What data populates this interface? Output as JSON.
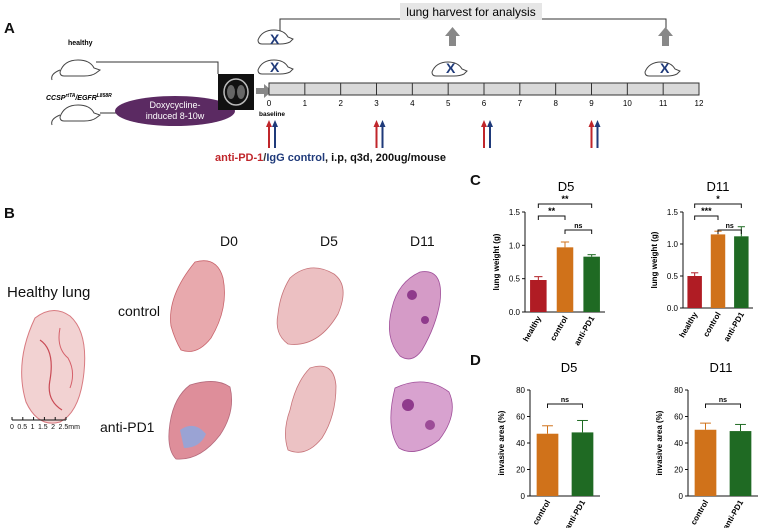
{
  "panel_letters": {
    "a": "A",
    "b": "B",
    "c": "C",
    "d": "D"
  },
  "panel_a": {
    "harvest_label": "lung harvest for analysis",
    "group_healthy": "healthy",
    "group_model": "CCSP",
    "group_model_sup": "rtTA",
    "group_model_mid": "/EGFR",
    "group_model_sup2": "L858R",
    "dox_line1": "Doxycycline-",
    "dox_line2": "induced 8-10w",
    "baseline": "baseline",
    "timeline_ticks": [
      "0",
      "1",
      "2",
      "3",
      "4",
      "5",
      "6",
      "7",
      "8",
      "9",
      "10",
      "11",
      "12"
    ],
    "dosing_days": [
      0,
      3,
      6,
      9
    ],
    "harvest_days": [
      0,
      5,
      11
    ],
    "treatment_red": "anti-PD-1",
    "treatment_sep": "/",
    "treatment_blue": "IgG control",
    "treatment_rest": ", i.p, q3d,  200ug/mouse",
    "colors": {
      "red": "#c0262b",
      "blue": "#1f3a7a",
      "dox_fill": "#5b2a62",
      "arrow_gray": "#888888"
    }
  },
  "panel_b": {
    "healthy_label": "Healthy lung",
    "scale_ticks": [
      "0",
      "0.5",
      "1",
      "1.5",
      "2",
      "2.5mm"
    ],
    "col_labels": [
      "D0",
      "D5",
      "D11"
    ],
    "row_labels": [
      "control",
      "anti-PD1"
    ]
  },
  "chart_data": [
    {
      "type": "bar",
      "panel": "C",
      "title": "D5",
      "ylabel": "lung weight (g)",
      "categories": [
        "healthy",
        "control",
        "anti-PD1"
      ],
      "values": [
        0.48,
        0.97,
        0.83
      ],
      "errors": [
        0.05,
        0.08,
        0.03
      ],
      "ylim": [
        0,
        1.5
      ],
      "yticks": [
        "0.0",
        "0.5",
        "1.0",
        "1.5"
      ],
      "colors": [
        "#b01c24",
        "#d0721a",
        "#1f6a23"
      ],
      "significance": [
        {
          "from": 0,
          "to": 2,
          "label": "**"
        },
        {
          "from": 0,
          "to": 1,
          "label": "**"
        },
        {
          "from": 1,
          "to": 2,
          "label": "ns"
        }
      ]
    },
    {
      "type": "bar",
      "panel": "C",
      "title": "D11",
      "ylabel": "lung weight (g)",
      "categories": [
        "healthy",
        "control",
        "anti-PD1"
      ],
      "values": [
        0.5,
        1.15,
        1.12
      ],
      "errors": [
        0.05,
        0.05,
        0.15
      ],
      "ylim": [
        0,
        1.5
      ],
      "yticks": [
        "0.0",
        "0.5",
        "1.0",
        "1.5"
      ],
      "colors": [
        "#b01c24",
        "#d0721a",
        "#1f6a23"
      ],
      "significance": [
        {
          "from": 0,
          "to": 2,
          "label": "*"
        },
        {
          "from": 0,
          "to": 1,
          "label": "***"
        },
        {
          "from": 1,
          "to": 2,
          "label": "ns"
        }
      ]
    },
    {
      "type": "bar",
      "panel": "D",
      "title": "D5",
      "ylabel": "invasive area  (%)",
      "categories": [
        "control",
        "anti-PD1"
      ],
      "values": [
        47,
        48
      ],
      "errors": [
        6,
        9
      ],
      "ylim": [
        0,
        80
      ],
      "yticks": [
        "0",
        "20",
        "40",
        "60",
        "80"
      ],
      "colors": [
        "#d0721a",
        "#1f6a23"
      ],
      "significance": [
        {
          "from": 0,
          "to": 1,
          "label": "ns"
        }
      ]
    },
    {
      "type": "bar",
      "panel": "D",
      "title": "D11",
      "ylabel": "invasive area  (%)",
      "categories": [
        "control",
        "anti-PD1"
      ],
      "values": [
        50,
        49
      ],
      "errors": [
        5,
        5
      ],
      "ylim": [
        0,
        80
      ],
      "yticks": [
        "0",
        "20",
        "40",
        "60",
        "80"
      ],
      "colors": [
        "#d0721a",
        "#1f6a23"
      ],
      "significance": [
        {
          "from": 0,
          "to": 1,
          "label": "ns"
        }
      ]
    }
  ]
}
